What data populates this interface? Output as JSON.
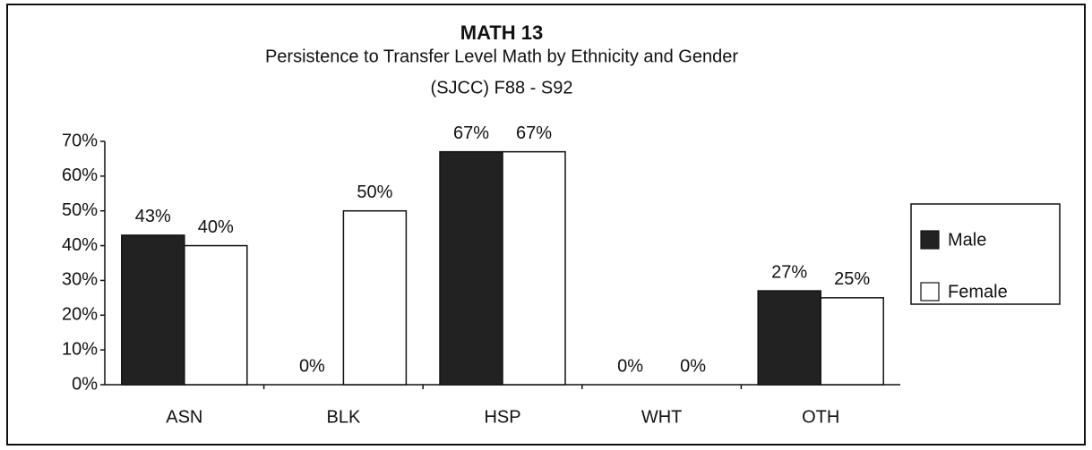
{
  "chart_data": {
    "type": "bar",
    "title": "MATH 13",
    "subtitle": [
      "Persistence to Transfer Level Math by Ethnicity and Gender",
      "(SJCC) F88 - S92"
    ],
    "categories": [
      "ASN",
      "BLK",
      "HSP",
      "WHT",
      "OTH"
    ],
    "series": [
      {
        "name": "Male",
        "color": "#222222",
        "values": [
          43,
          0,
          67,
          0,
          27
        ],
        "value_labels": [
          "43%",
          "0%",
          "67%",
          "0%",
          "27%"
        ]
      },
      {
        "name": "Female",
        "color": "#ffffff",
        "values": [
          40,
          50,
          67,
          0,
          25
        ],
        "value_labels": [
          "40%",
          "50%",
          "67%",
          "0%",
          "25%"
        ]
      }
    ],
    "ylim": [
      0,
      70
    ],
    "yticks": [
      {
        "value": 0,
        "label": "0%"
      },
      {
        "value": 10,
        "label": "10%"
      },
      {
        "value": 20,
        "label": "20%"
      },
      {
        "value": 30,
        "label": "30%"
      },
      {
        "value": 40,
        "label": "40%"
      },
      {
        "value": 50,
        "label": "50%"
      },
      {
        "value": 60,
        "label": "60%"
      },
      {
        "value": 70,
        "label": "70%"
      }
    ],
    "legend": "right"
  }
}
